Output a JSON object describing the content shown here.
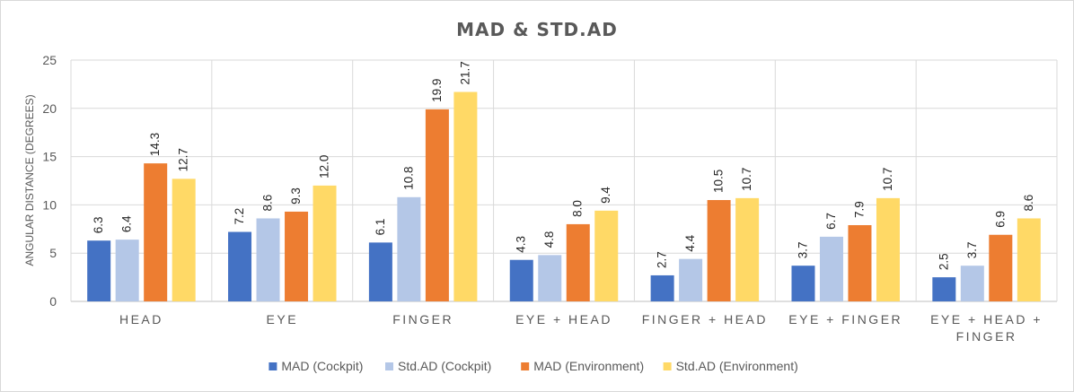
{
  "chart_data": {
    "type": "bar",
    "title": "MAD & STD.AD",
    "xlabel": "",
    "ylabel": "ANGULAR DISTANCE (DEGREES)",
    "ylim": [
      0,
      25
    ],
    "yticks": [
      0,
      5,
      10,
      15,
      20,
      25
    ],
    "grid": true,
    "legend_position": "bottom",
    "categories": [
      [
        "HEAD"
      ],
      [
        "EYE"
      ],
      [
        "FINGER"
      ],
      [
        "EYE + HEAD"
      ],
      [
        "FINGER + HEAD"
      ],
      [
        "EYE + FINGER"
      ],
      [
        "EYE + HEAD +",
        "FINGER"
      ]
    ],
    "series": [
      {
        "name": "MAD (Cockpit)",
        "color": "#4472c4",
        "values": [
          6.3,
          7.2,
          6.1,
          4.3,
          2.7,
          3.7,
          2.5
        ]
      },
      {
        "name": "Std.AD (Cockpit)",
        "color": "#b4c7e7",
        "values": [
          6.4,
          8.6,
          10.8,
          4.8,
          4.4,
          6.7,
          3.7
        ]
      },
      {
        "name": "MAD (Environment)",
        "color": "#ed7d31",
        "values": [
          14.3,
          9.3,
          19.9,
          8.0,
          10.5,
          7.9,
          6.9
        ]
      },
      {
        "name": "Std.AD (Environment)",
        "color": "#ffd966",
        "values": [
          12.7,
          12.0,
          21.7,
          9.4,
          10.7,
          10.7,
          8.6
        ]
      }
    ]
  }
}
